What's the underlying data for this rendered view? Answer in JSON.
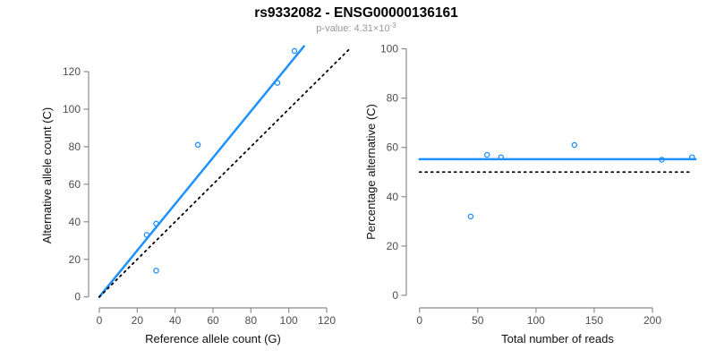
{
  "header": {
    "title": "rs9332082 - ENSG00000136161",
    "p_value_prefix": "p-value: 4.31×10",
    "p_value_exponent": "-3"
  },
  "colors": {
    "accent_blue": "#1E90FF",
    "black": "#000000",
    "axis_gray": "#8c8c8c",
    "tick_label_gray": "#4d4d4d",
    "subtitle_gray": "#999999"
  },
  "chart_data": [
    {
      "type": "scatter",
      "panel": "left",
      "xlabel": "Reference allele count (G)",
      "ylabel": "Alternative allele count (C)",
      "xticks": [
        0,
        20,
        40,
        60,
        80,
        100,
        120
      ],
      "yticks": [
        0,
        20,
        40,
        60,
        80,
        100,
        120
      ],
      "xlim": [
        0,
        120
      ],
      "ylim": [
        0,
        120
      ],
      "grid": false,
      "points": [
        [
          25,
          33
        ],
        [
          30,
          39
        ],
        [
          30,
          14
        ],
        [
          52,
          81
        ],
        [
          94,
          114
        ],
        [
          103,
          131
        ]
      ],
      "lines": [
        {
          "name": "fitted-line",
          "from": [
            0,
            0
          ],
          "to": [
            108,
            133.5
          ],
          "style": "solid",
          "color_key": "accent_blue",
          "width": 2.5
        },
        {
          "name": "identity-line",
          "from": [
            0,
            0
          ],
          "to": [
            131.5,
            131.5
          ],
          "style": "dotted",
          "color_key": "black",
          "width": 1.8
        }
      ]
    },
    {
      "type": "scatter",
      "panel": "right",
      "xlabel": "Total number of reads",
      "ylabel": "Percentage alternative (C)",
      "xticks": [
        0,
        50,
        100,
        150,
        200
      ],
      "yticks": [
        0,
        20,
        40,
        60,
        80,
        100
      ],
      "xlim": [
        0,
        200
      ],
      "ylim": [
        0,
        100
      ],
      "grid": false,
      "points": [
        [
          44,
          32
        ],
        [
          58,
          57
        ],
        [
          70,
          56
        ],
        [
          133,
          61
        ],
        [
          208,
          55
        ],
        [
          234,
          56
        ]
      ],
      "lines": [
        {
          "name": "fitted-percentage-line",
          "from": [
            0,
            55.2
          ],
          "to": [
            237,
            55.2
          ],
          "style": "solid",
          "color_key": "accent_blue",
          "width": 2.5
        },
        {
          "name": "null-50-percent-line",
          "from": [
            0,
            50
          ],
          "to": [
            232,
            50
          ],
          "style": "dotted",
          "color_key": "black",
          "width": 1.8
        }
      ]
    }
  ]
}
